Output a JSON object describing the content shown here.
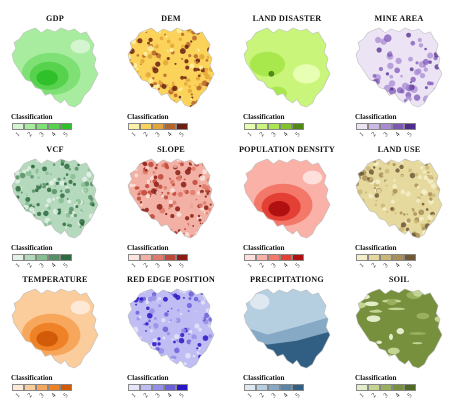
{
  "figure": {
    "classification_label": "Classification",
    "tick_labels": [
      "1",
      "2",
      "3",
      "4",
      "5"
    ],
    "panels": [
      {
        "title": "GDP",
        "palette": [
          "#d4f5d0",
          "#a8ecA0",
          "#7fe076",
          "#56d24d",
          "#2fc02a"
        ],
        "style": "blob"
      },
      {
        "title": "DEM",
        "palette": [
          "#fff2a8",
          "#fbd35a",
          "#e3a43a",
          "#b5642a",
          "#6a1f10"
        ],
        "style": "terrain"
      },
      {
        "title": "LAND DISASTER",
        "palette": [
          "#e6ffb3",
          "#c8f57a",
          "#a8e84d",
          "#7fc52a",
          "#4e8a14"
        ],
        "style": "flat"
      },
      {
        "title": "MINE AREA",
        "palette": [
          "#ece3f5",
          "#cdb9e6",
          "#a88bd2",
          "#7d57b6",
          "#4f2b8e"
        ],
        "style": "dots"
      },
      {
        "title": "VCF",
        "palette": [
          "#e4f1e6",
          "#b5d9bc",
          "#86be92",
          "#578f66",
          "#2e6a40"
        ],
        "style": "terrain"
      },
      {
        "title": "SLOPE",
        "palette": [
          "#fde4de",
          "#f2b1a4",
          "#e07a6a",
          "#bf473a",
          "#8b1c14"
        ],
        "style": "terrain"
      },
      {
        "title": "POPULATION DENSITY",
        "palette": [
          "#fde0dc",
          "#f9b1a8",
          "#f3786a",
          "#e43f34",
          "#b01010"
        ],
        "style": "blob"
      },
      {
        "title": "LAND USE",
        "palette": [
          "#f5efc9",
          "#e6d99e",
          "#cbb878",
          "#a88e58",
          "#6e5836"
        ],
        "style": "terrain"
      },
      {
        "title": "TEMPERATURE",
        "palette": [
          "#fde9d6",
          "#fbcc9c",
          "#f7a75c",
          "#ef8226",
          "#d15b08"
        ],
        "style": "blob"
      },
      {
        "title": "RED EDGE POSITION",
        "palette": [
          "#e4e4fb",
          "#bfbdf3",
          "#948fe8",
          "#6a5fd9",
          "#2a14c8"
        ],
        "style": "terrain"
      },
      {
        "title": "PRECIPITATIONG",
        "palette": [
          "#dde8f0",
          "#b6cfe0",
          "#86a9c5",
          "#5a85a8",
          "#315f84"
        ],
        "style": "split"
      },
      {
        "title": "SOIL",
        "palette": [
          "#e4edc9",
          "#c3d493",
          "#9bb05e",
          "#76903d",
          "#4f6a22"
        ],
        "style": "soil"
      }
    ]
  }
}
